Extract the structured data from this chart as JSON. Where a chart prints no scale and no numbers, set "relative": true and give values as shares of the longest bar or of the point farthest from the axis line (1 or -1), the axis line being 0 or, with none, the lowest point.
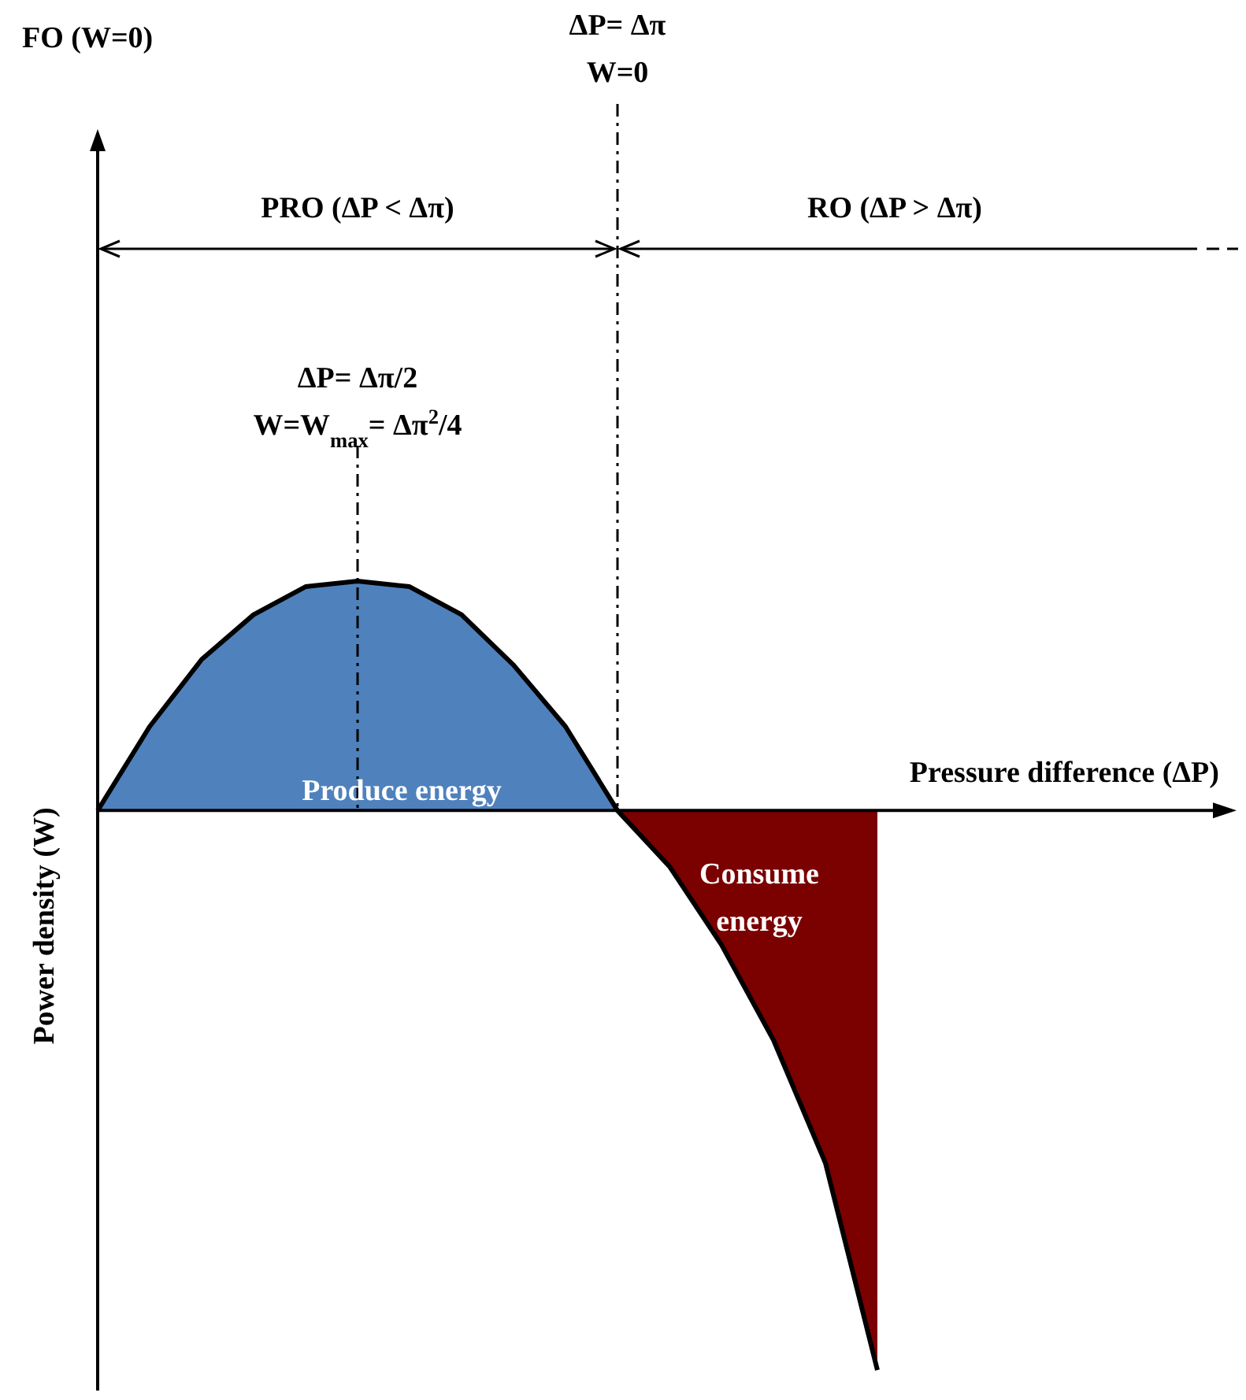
{
  "chart_data": {
    "type": "area",
    "relative": true,
    "xlabel": "Pressure difference (ΔP)",
    "ylabel": "Power density (W)",
    "tick_labels": false,
    "categories": [
      null,
      null,
      null,
      null,
      null,
      null,
      null,
      null,
      null,
      null,
      null,
      null,
      null,
      null,
      null,
      null
    ],
    "series": [
      {
        "color": "#000000",
        "values": [
          0,
          0.15,
          0.27,
          0.35,
          0.4,
          0.41,
          0.4,
          0.35,
          0.26,
          0.15,
          0,
          -0.1,
          -0.24,
          -0.41,
          -0.63,
          -1.0
        ],
        "colors": [
          "#4f81bd",
          "#4f81bd",
          "#4f81bd",
          "#4f81bd",
          "#4f81bd",
          "#4f81bd",
          "#4f81bd",
          "#4f81bd",
          "#4f81bd",
          "#4f81bd",
          "#4f81bd",
          "#7b0000",
          "#7b0000",
          "#7b0000",
          "#7b0000",
          "#7b0000"
        ]
      }
    ],
    "annotations": [
      "FO (W=0)",
      "ΔP= Δπ\nW=0",
      "PRO (ΔP < Δπ)",
      "RO (ΔP > Δπ)",
      "ΔP= Δπ/2\nW=W$_{max}$= Δπ$^{2}$/4",
      "Produce energy",
      "Consume\nenergy"
    ]
  }
}
